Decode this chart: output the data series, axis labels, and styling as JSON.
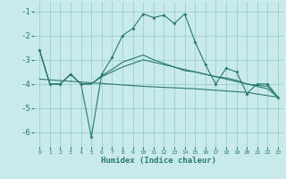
{
  "xlabel": "Humidex (Indice chaleur)",
  "bg_color": "#c8eaea",
  "grid_color": "#9ecece",
  "line_color": "#2a7a6a",
  "xlim": [
    -0.5,
    23.5
  ],
  "ylim": [
    -6.6,
    -0.6
  ],
  "yticks": [
    -6,
    -5,
    -4,
    -3,
    -2,
    -1
  ],
  "xticks": [
    0,
    1,
    2,
    3,
    4,
    5,
    6,
    7,
    8,
    9,
    10,
    11,
    12,
    13,
    14,
    15,
    16,
    17,
    18,
    19,
    20,
    21,
    22,
    23
  ],
  "line1_x": [
    0,
    1,
    2,
    3,
    4,
    5,
    6,
    7,
    8,
    9,
    10,
    11,
    12,
    13,
    14,
    15,
    16,
    17,
    18,
    19,
    20,
    21,
    22,
    23
  ],
  "line1_y": [
    -2.6,
    -4.0,
    -4.0,
    -3.6,
    -4.0,
    -6.2,
    -3.6,
    -2.9,
    -2.0,
    -1.7,
    -1.1,
    -1.25,
    -1.15,
    -1.5,
    -1.1,
    -2.25,
    -3.2,
    -4.0,
    -3.35,
    -3.5,
    -4.4,
    -4.0,
    -4.0,
    -4.55
  ],
  "line2_x": [
    0,
    1,
    2,
    3,
    4,
    5,
    6,
    7,
    8,
    9,
    10,
    11,
    12,
    13,
    14,
    15,
    16,
    17,
    18,
    19,
    20,
    21,
    22,
    23
  ],
  "line2_y": [
    -2.6,
    -4.0,
    -4.0,
    -3.6,
    -4.0,
    -4.0,
    -3.65,
    -3.4,
    -3.1,
    -2.95,
    -2.8,
    -3.0,
    -3.15,
    -3.3,
    -3.45,
    -3.5,
    -3.6,
    -3.7,
    -3.75,
    -3.85,
    -4.0,
    -4.05,
    -4.1,
    -4.55
  ],
  "line3_x": [
    0,
    1,
    2,
    3,
    4,
    5,
    6,
    7,
    8,
    9,
    10,
    11,
    12,
    13,
    14,
    15,
    16,
    17,
    18,
    19,
    20,
    21,
    22,
    23
  ],
  "line3_y": [
    -2.6,
    -4.0,
    -4.0,
    -3.6,
    -4.0,
    -4.0,
    -3.7,
    -3.5,
    -3.3,
    -3.15,
    -3.0,
    -3.1,
    -3.2,
    -3.3,
    -3.4,
    -3.5,
    -3.6,
    -3.7,
    -3.8,
    -3.9,
    -4.0,
    -4.1,
    -4.2,
    -4.55
  ],
  "line4_x": [
    0,
    5,
    10,
    15,
    20,
    23
  ],
  "line4_y": [
    -3.8,
    -3.95,
    -4.1,
    -4.2,
    -4.35,
    -4.55
  ]
}
